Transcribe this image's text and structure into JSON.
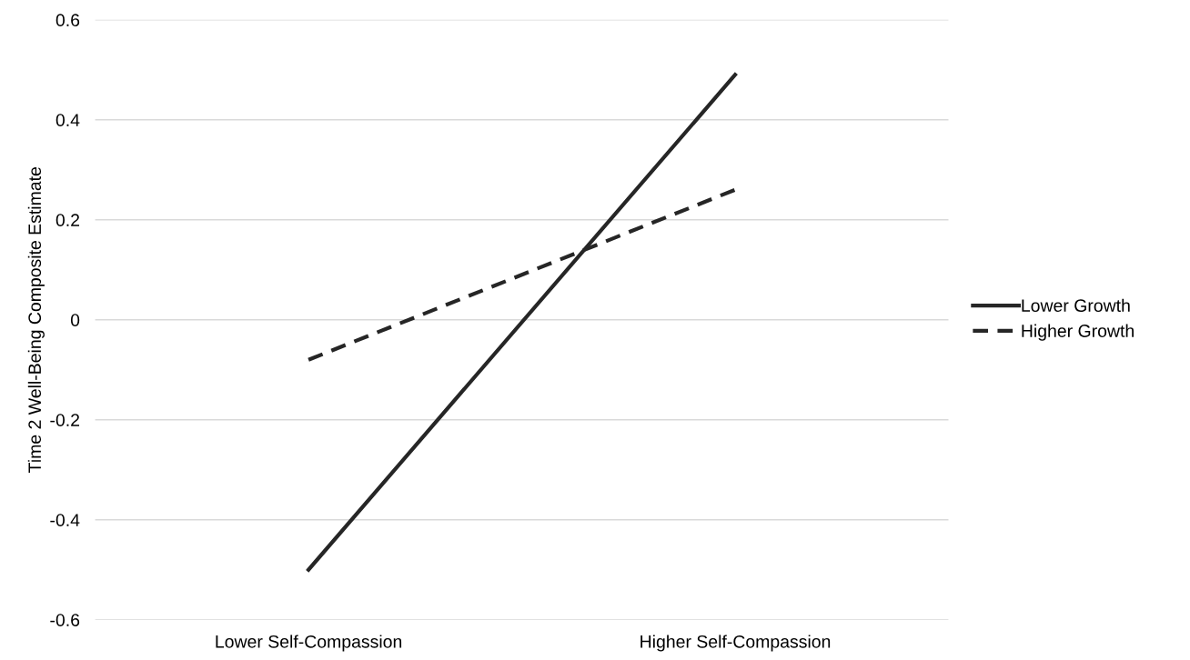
{
  "chart_data": {
    "type": "line",
    "ylabel": "Time 2 Well-Being Composite Estimate",
    "categories": [
      "Lower Self-Compassion",
      "Higher Self-Compassion"
    ],
    "series": [
      {
        "name": "Lower Growth",
        "color": "#262626",
        "values": [
          -0.5,
          0.49
        ],
        "line_style": "solid"
      },
      {
        "name": "Higher Growth",
        "color": "#262626",
        "values": [
          -0.08,
          0.26
        ],
        "line_style": "dashed"
      }
    ],
    "ylim": [
      -0.6,
      0.6
    ],
    "yticks": [
      -0.6,
      -0.4,
      -0.2,
      0,
      0.2,
      0.4,
      0.6
    ],
    "grid": "y",
    "legend": "right",
    "marker": "none"
  }
}
